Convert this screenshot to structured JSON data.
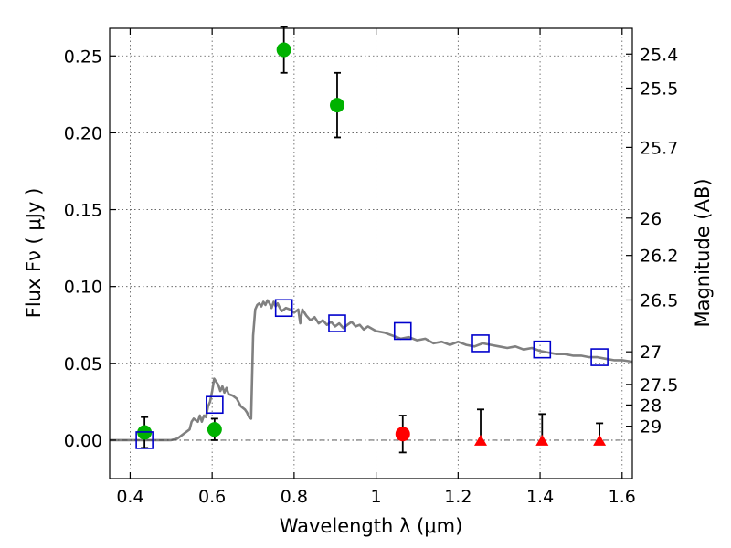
{
  "chart_data": {
    "type": "scatter",
    "xlabel": "Wavelength  λ (μm)",
    "ylabel": "Flux  Fν  ( μJy )",
    "ylabel_right": "Magnitude (AB)",
    "xlim": [
      0.35,
      1.625
    ],
    "ylim": [
      -0.025,
      0.268
    ],
    "xticks": [
      0.4,
      0.6,
      0.8,
      1.0,
      1.2,
      1.4,
      1.6
    ],
    "xtick_labels": [
      "0.4",
      "0.6",
      "0.8",
      "1",
      "1.2",
      "1.4",
      "1.6"
    ],
    "yticks": [
      0.0,
      0.05,
      0.1,
      0.15,
      0.2,
      0.25
    ],
    "ytick_labels": [
      "0.00",
      "0.05",
      "0.10",
      "0.15",
      "0.20",
      "0.25"
    ],
    "right_ticks": [
      {
        "label": "25.4",
        "flux": 0.2512
      },
      {
        "label": "25.5",
        "flux": 0.2291
      },
      {
        "label": "25.7",
        "flux": 0.1905
      },
      {
        "label": "26",
        "flux": 0.1445
      },
      {
        "label": "26.2",
        "flux": 0.1202
      },
      {
        "label": "26.5",
        "flux": 0.0912
      },
      {
        "label": "27",
        "flux": 0.0575
      },
      {
        "label": "27.5",
        "flux": 0.0363
      },
      {
        "label": "28",
        "flux": 0.0229
      },
      {
        "label": "29",
        "flux": 0.0091
      }
    ],
    "grid": true,
    "colors": {
      "detection": "#00b200",
      "non_detection": "#ff0000",
      "model": "#0000cc",
      "sed": "#808080",
      "errorbar": "#000000"
    },
    "series": [
      {
        "marker": "circle-green",
        "points": [
          {
            "x": 0.435,
            "y": 0.005,
            "err": 0.01
          },
          {
            "x": 0.606,
            "y": 0.007,
            "err": 0.007
          },
          {
            "x": 0.775,
            "y": 0.254,
            "err": 0.015
          },
          {
            "x": 0.905,
            "y": 0.218,
            "err": 0.021
          }
        ]
      },
      {
        "marker": "circle-red",
        "points": [
          {
            "x": 1.065,
            "y": 0.004,
            "err": 0.012
          }
        ]
      },
      {
        "marker": "triangle-red",
        "points": [
          {
            "x": 1.255,
            "y": 0.0,
            "err_up": 0.02
          },
          {
            "x": 1.405,
            "y": 0.0,
            "err_up": 0.017
          },
          {
            "x": 1.545,
            "y": 0.0,
            "err_up": 0.011
          }
        ]
      },
      {
        "marker": "square-blue-open",
        "points": [
          {
            "x": 0.435,
            "y": 0.0
          },
          {
            "x": 0.606,
            "y": 0.023
          },
          {
            "x": 0.775,
            "y": 0.086
          },
          {
            "x": 0.905,
            "y": 0.076
          },
          {
            "x": 1.065,
            "y": 0.071
          },
          {
            "x": 1.255,
            "y": 0.063
          },
          {
            "x": 1.405,
            "y": 0.059
          },
          {
            "x": 1.545,
            "y": 0.054
          }
        ]
      },
      {
        "marker": "line-gray",
        "x": [
          0.35,
          0.5,
          0.515,
          0.53,
          0.545,
          0.55,
          0.555,
          0.56,
          0.565,
          0.57,
          0.575,
          0.58,
          0.585,
          0.59,
          0.595,
          0.6,
          0.605,
          0.61,
          0.615,
          0.62,
          0.625,
          0.63,
          0.635,
          0.64,
          0.65,
          0.66,
          0.67,
          0.68,
          0.685,
          0.69,
          0.695,
          0.7,
          0.705,
          0.71,
          0.715,
          0.72,
          0.725,
          0.73,
          0.735,
          0.74,
          0.745,
          0.75,
          0.755,
          0.76,
          0.765,
          0.77,
          0.78,
          0.79,
          0.8,
          0.81,
          0.815,
          0.82,
          0.83,
          0.84,
          0.85,
          0.86,
          0.87,
          0.88,
          0.89,
          0.9,
          0.91,
          0.92,
          0.93,
          0.94,
          0.95,
          0.96,
          0.97,
          0.98,
          1.0,
          1.02,
          1.04,
          1.06,
          1.08,
          1.1,
          1.12,
          1.14,
          1.16,
          1.18,
          1.2,
          1.22,
          1.24,
          1.26,
          1.28,
          1.3,
          1.32,
          1.34,
          1.36,
          1.38,
          1.4,
          1.42,
          1.44,
          1.46,
          1.48,
          1.5,
          1.52,
          1.54,
          1.56,
          1.58,
          1.6,
          1.625
        ],
        "y": [
          0.0,
          0.0,
          0.001,
          0.004,
          0.007,
          0.012,
          0.014,
          0.013,
          0.012,
          0.016,
          0.012,
          0.016,
          0.015,
          0.022,
          0.025,
          0.032,
          0.04,
          0.038,
          0.036,
          0.032,
          0.035,
          0.031,
          0.034,
          0.03,
          0.029,
          0.027,
          0.022,
          0.02,
          0.018,
          0.015,
          0.014,
          0.068,
          0.085,
          0.088,
          0.089,
          0.087,
          0.09,
          0.088,
          0.091,
          0.089,
          0.086,
          0.09,
          0.087,
          0.089,
          0.086,
          0.084,
          0.086,
          0.085,
          0.083,
          0.085,
          0.076,
          0.085,
          0.081,
          0.078,
          0.08,
          0.076,
          0.078,
          0.075,
          0.077,
          0.074,
          0.076,
          0.073,
          0.075,
          0.077,
          0.074,
          0.075,
          0.072,
          0.074,
          0.071,
          0.07,
          0.068,
          0.066,
          0.067,
          0.065,
          0.066,
          0.063,
          0.064,
          0.062,
          0.064,
          0.062,
          0.061,
          0.063,
          0.062,
          0.061,
          0.06,
          0.061,
          0.059,
          0.06,
          0.058,
          0.057,
          0.056,
          0.056,
          0.055,
          0.055,
          0.054,
          0.054,
          0.053,
          0.052,
          0.052,
          0.051
        ]
      }
    ]
  }
}
